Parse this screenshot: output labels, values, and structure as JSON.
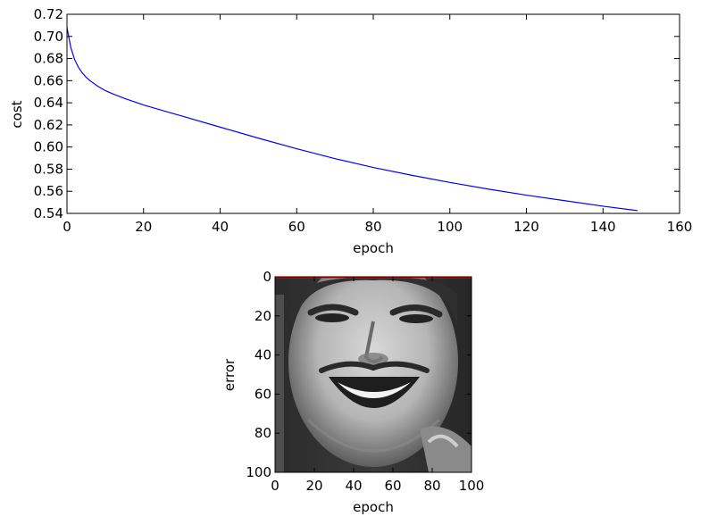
{
  "chart_data": [
    {
      "type": "line",
      "xlabel": "epoch",
      "ylabel": "cost",
      "xlim": [
        0,
        160
      ],
      "ylim": [
        0.54,
        0.72
      ],
      "xticks": [
        0,
        20,
        40,
        60,
        80,
        100,
        120,
        140,
        160
      ],
      "xtick_labels": [
        "0",
        "20",
        "40",
        "60",
        "80",
        "100",
        "120",
        "140",
        "160"
      ],
      "yticks": [
        0.54,
        0.56,
        0.58,
        0.6,
        0.62,
        0.64,
        0.66,
        0.68,
        0.7,
        0.72
      ],
      "ytick_labels": [
        "0.54",
        "0.56",
        "0.58",
        "0.60",
        "0.62",
        "0.64",
        "0.66",
        "0.68",
        "0.70",
        "0.72"
      ],
      "grid": false,
      "series": [
        {
          "color": "#0000ff",
          "x": [
            0,
            1,
            2,
            3,
            4,
            5,
            6,
            8,
            10,
            12,
            15,
            20,
            25,
            30,
            40,
            50,
            60,
            70,
            80,
            90,
            100,
            110,
            120,
            130,
            140,
            149
          ],
          "y": [
            0.708,
            0.69,
            0.679,
            0.672,
            0.667,
            0.663,
            0.66,
            0.655,
            0.651,
            0.648,
            0.644,
            0.638,
            0.633,
            0.628,
            0.618,
            0.608,
            0.5985,
            0.5895,
            0.5815,
            0.5745,
            0.568,
            0.562,
            0.5565,
            0.5515,
            0.5465,
            0.5425
          ]
        }
      ]
    },
    {
      "type": "image",
      "xlabel": "epoch",
      "ylabel": "error",
      "xlim": [
        0,
        100
      ],
      "ylim": [
        100,
        0
      ],
      "xticks": [
        0,
        20,
        40,
        60,
        80,
        100
      ],
      "xtick_labels": [
        "0",
        "20",
        "40",
        "60",
        "80",
        "100"
      ],
      "yticks": [
        0,
        20,
        40,
        60,
        80,
        100
      ],
      "ytick_labels": [
        "0",
        "20",
        "40",
        "60",
        "80",
        "100"
      ],
      "image_content": "grayscale-face",
      "overlay_line": {
        "color": "#ff0000",
        "y": 0
      }
    }
  ]
}
